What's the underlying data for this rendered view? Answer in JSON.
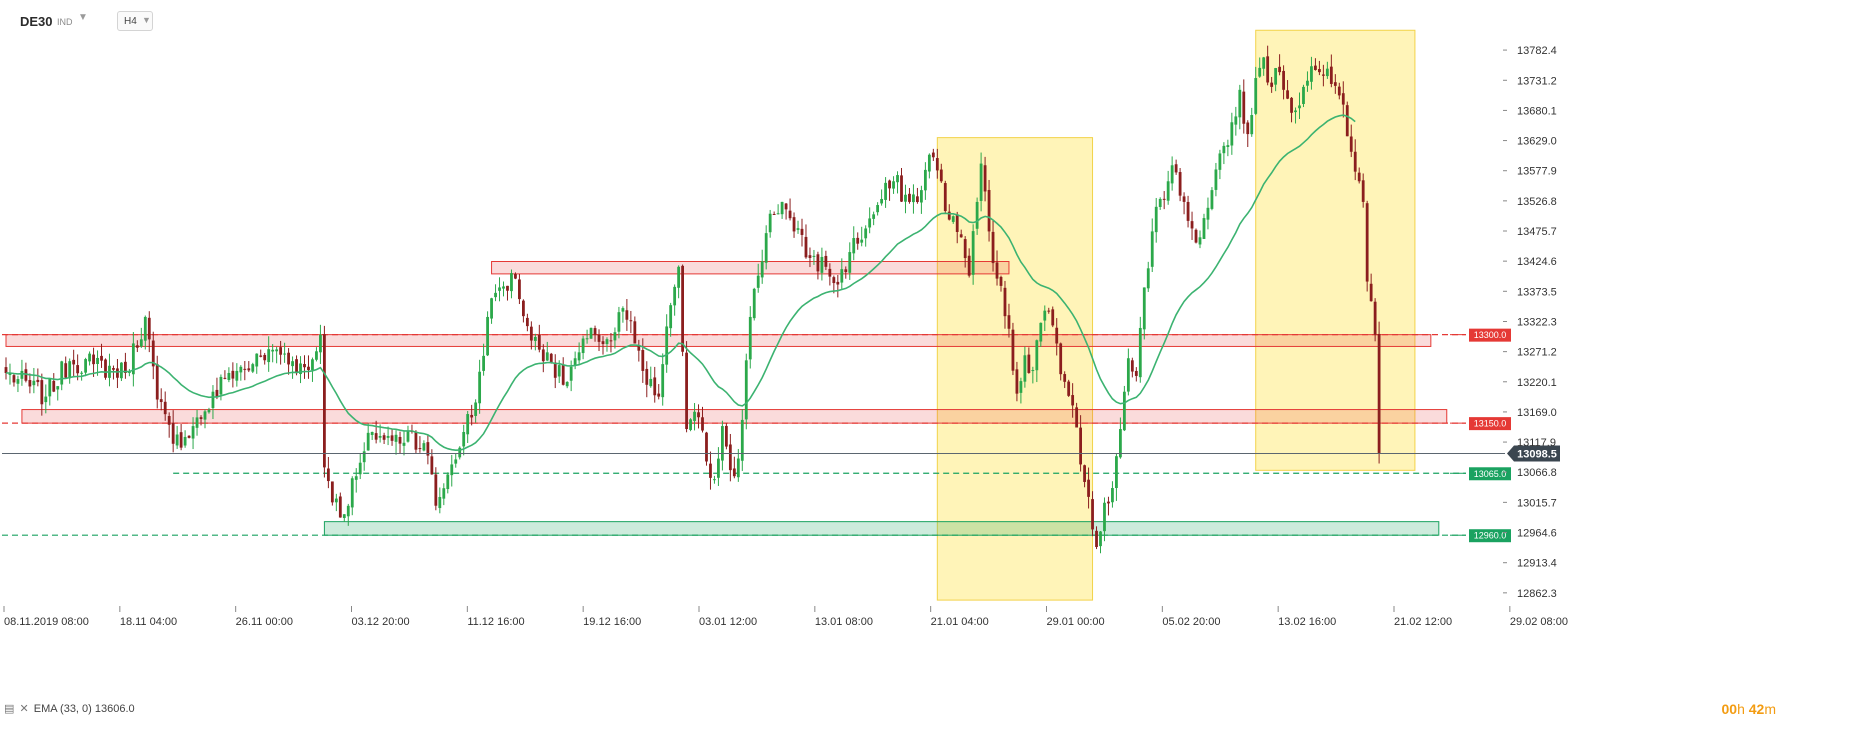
{
  "toolbar": {
    "symbol": "DE30",
    "symbol_type": "IND",
    "timeframe": "H4",
    "caret": "▼"
  },
  "indicator_legend": {
    "text": "EMA (33, 0) 13606.0"
  },
  "timer": {
    "hours": "00",
    "h": "h",
    "minutes": "42",
    "m": "m"
  },
  "colors": {
    "up": "#2ba84a",
    "down": "#8b1e1e",
    "ema": "#3cb371",
    "resistance": "#e53935",
    "support": "#1aa260",
    "highlight_zone": "#fff4b8",
    "current_price": "#3b4650"
  },
  "chart_data": {
    "type": "candlestick",
    "symbol": "DE30",
    "timeframe": "H4",
    "ylim": [
      12840,
      13830
    ],
    "y_ticks": [
      13782.4,
      13731.2,
      13680.1,
      13629.0,
      13577.9,
      13526.8,
      13475.7,
      13424.6,
      13373.5,
      13322.3,
      13271.2,
      13220.1,
      13169.0,
      13117.9,
      13066.8,
      13015.7,
      12964.6,
      12913.4,
      12862.3
    ],
    "x_ticks": [
      "08.11.2019 08:00",
      "18.11 04:00",
      "26.11 00:00",
      "03.12 20:00",
      "11.12 16:00",
      "19.12 16:00",
      "03.01 12:00",
      "13.01 08:00",
      "21.01 04:00",
      "29.01 00:00",
      "05.02 20:00",
      "13.02 16:00",
      "21.02 12:00",
      "29.02 08:00"
    ],
    "current_price": 13098.5,
    "horizontal_levels": [
      {
        "value": 13300.0,
        "label": "13300.0",
        "kind": "resistance"
      },
      {
        "value": 13150.0,
        "label": "13150.0",
        "kind": "resistance"
      },
      {
        "value": 13065.0,
        "label": "13065.0",
        "kind": "support"
      },
      {
        "value": 12960.0,
        "label": "12960.0",
        "kind": "support"
      }
    ],
    "zones": [
      {
        "from": 13403,
        "to": 13424,
        "start_bar": 122,
        "end_bar": 252,
        "kind": "resistance"
      },
      {
        "from": 13280,
        "to": 13300,
        "start_bar": 0,
        "end_bar": 358,
        "kind": "resistance"
      },
      {
        "from": 13150,
        "to": 13173,
        "start_bar": 4,
        "end_bar": 362,
        "kind": "resistance"
      },
      {
        "from": 12960,
        "to": 12983,
        "start_bar": 80,
        "end_bar": 360,
        "kind": "support"
      }
    ],
    "highlight_ranges": [
      {
        "start_bar": 234,
        "end_bar": 273,
        "top": 13634,
        "bottom": 12850
      },
      {
        "start_bar": 314,
        "end_bar": 354,
        "top": 13816,
        "bottom": 13070
      }
    ],
    "ema": {
      "period": 33,
      "value": 13606.0
    },
    "ohlc_anchors": [
      [
        0,
        13235
      ],
      [
        10,
        13195
      ],
      [
        16,
        13255
      ],
      [
        22,
        13250
      ],
      [
        30,
        13235
      ],
      [
        35,
        13330
      ],
      [
        38,
        13190
      ],
      [
        42,
        13115
      ],
      [
        47,
        13145
      ],
      [
        50,
        13170
      ],
      [
        56,
        13235
      ],
      [
        62,
        13250
      ],
      [
        68,
        13275
      ],
      [
        72,
        13255
      ],
      [
        76,
        13240
      ],
      [
        79,
        13300
      ],
      [
        80,
        13075
      ],
      [
        84,
        12990
      ],
      [
        88,
        13060
      ],
      [
        92,
        13135
      ],
      [
        97,
        13120
      ],
      [
        102,
        13135
      ],
      [
        106,
        13095
      ],
      [
        108,
        13010
      ],
      [
        112,
        13080
      ],
      [
        115,
        13135
      ],
      [
        118,
        13185
      ],
      [
        121,
        13330
      ],
      [
        124,
        13380
      ],
      [
        128,
        13395
      ],
      [
        132,
        13290
      ],
      [
        136,
        13270
      ],
      [
        140,
        13215
      ],
      [
        144,
        13270
      ],
      [
        148,
        13300
      ],
      [
        152,
        13290
      ],
      [
        155,
        13345
      ],
      [
        158,
        13285
      ],
      [
        161,
        13215
      ],
      [
        164,
        13195
      ],
      [
        167,
        13350
      ],
      [
        169,
        13415
      ],
      [
        171,
        13140
      ],
      [
        174,
        13160
      ],
      [
        176,
        13085
      ],
      [
        178,
        13055
      ],
      [
        180,
        13145
      ],
      [
        183,
        13060
      ],
      [
        184,
        13090
      ],
      [
        187,
        13330
      ],
      [
        189,
        13400
      ],
      [
        192,
        13505
      ],
      [
        195,
        13525
      ],
      [
        198,
        13475
      ],
      [
        202,
        13430
      ],
      [
        206,
        13415
      ],
      [
        209,
        13385
      ],
      [
        212,
        13440
      ],
      [
        216,
        13480
      ],
      [
        220,
        13530
      ],
      [
        223,
        13560
      ],
      [
        227,
        13525
      ],
      [
        230,
        13545
      ],
      [
        232,
        13605
      ],
      [
        235,
        13560
      ],
      [
        237,
        13495
      ],
      [
        240,
        13465
      ],
      [
        242,
        13400
      ],
      [
        244,
        13525
      ],
      [
        245,
        13590
      ],
      [
        247,
        13475
      ],
      [
        249,
        13395
      ],
      [
        252,
        13310
      ],
      [
        254,
        13200
      ],
      [
        256,
        13265
      ],
      [
        258,
        13240
      ],
      [
        260,
        13320
      ],
      [
        262,
        13340
      ],
      [
        264,
        13285
      ],
      [
        266,
        13220
      ],
      [
        268,
        13180
      ],
      [
        270,
        13080
      ],
      [
        272,
        13025
      ],
      [
        274,
        12940
      ],
      [
        276,
        13015
      ],
      [
        278,
        13040
      ],
      [
        280,
        13140
      ],
      [
        282,
        13260
      ],
      [
        284,
        13230
      ],
      [
        286,
        13380
      ],
      [
        288,
        13475
      ],
      [
        290,
        13530
      ],
      [
        292,
        13560
      ],
      [
        294,
        13575
      ],
      [
        296,
        13525
      ],
      [
        298,
        13480
      ],
      [
        300,
        13465
      ],
      [
        302,
        13515
      ],
      [
        304,
        13580
      ],
      [
        306,
        13620
      ],
      [
        308,
        13660
      ],
      [
        310,
        13715
      ],
      [
        312,
        13640
      ],
      [
        314,
        13735
      ],
      [
        316,
        13770
      ],
      [
        318,
        13720
      ],
      [
        320,
        13745
      ],
      [
        322,
        13700
      ],
      [
        324,
        13680
      ],
      [
        326,
        13720
      ],
      [
        328,
        13755
      ],
      [
        330,
        13745
      ],
      [
        333,
        13725
      ],
      [
        336,
        13690
      ],
      [
        338,
        13610
      ],
      [
        340,
        13560
      ],
      [
        341,
        13525
      ],
      [
        342,
        13390
      ],
      [
        344,
        13300
      ],
      [
        345,
        13098.5
      ]
    ]
  }
}
